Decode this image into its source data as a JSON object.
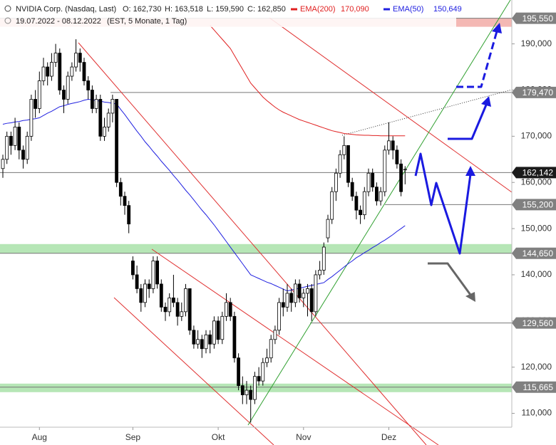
{
  "chart_data": {
    "type": "candlestick",
    "header": {
      "title": "NVIDIA Corp. (Nasdaq, Last)",
      "ohlc_labels": [
        "O: 162,730",
        "H: 163,518",
        "L: 159,590",
        "C: 162,850"
      ],
      "range": "19.07.2022 - 08.12.2022",
      "settings": "(EST, 5 Monate, 1 Tag)"
    },
    "categories": [
      null,
      null,
      null,
      null,
      null,
      null,
      null,
      null,
      null,
      "Aug",
      null,
      null,
      null,
      null,
      null,
      null,
      null,
      null,
      null,
      null,
      null,
      null,
      null,
      null,
      null,
      null,
      null,
      null,
      null,
      null,
      null,
      null,
      "Sep",
      null,
      null,
      null,
      null,
      null,
      null,
      null,
      null,
      null,
      null,
      null,
      null,
      null,
      null,
      null,
      null,
      null,
      null,
      null,
      null,
      "Okt",
      null,
      null,
      null,
      null,
      null,
      null,
      null,
      null,
      null,
      null,
      null,
      null,
      null,
      null,
      null,
      null,
      null,
      null,
      null,
      null,
      "Nov",
      null,
      null,
      null,
      null,
      null,
      null,
      null,
      null,
      null,
      null,
      null,
      null,
      null,
      null,
      null,
      null,
      null,
      null,
      null,
      null,
      "Dez",
      null,
      null,
      null,
      null
    ],
    "ohlc": [
      [
        163,
        166,
        161,
        165
      ],
      [
        165,
        171,
        164,
        170
      ],
      [
        170,
        171,
        166,
        168
      ],
      [
        168,
        174,
        167,
        172
      ],
      [
        172,
        173,
        165,
        167
      ],
      [
        167,
        168,
        163,
        165
      ],
      [
        165,
        171,
        164,
        170
      ],
      [
        170,
        179,
        169,
        178
      ],
      [
        178,
        180,
        174,
        176
      ],
      [
        176,
        184,
        175,
        182
      ],
      [
        182,
        187,
        181,
        185
      ],
      [
        185,
        186,
        181,
        183
      ],
      [
        183,
        188,
        182,
        186
      ],
      [
        186,
        190,
        185,
        188
      ],
      [
        188,
        189,
        179,
        180
      ],
      [
        180,
        181,
        175,
        178
      ],
      [
        178,
        184,
        177,
        183
      ],
      [
        183,
        186,
        182,
        185
      ],
      [
        185,
        191,
        184,
        188
      ],
      [
        188,
        189,
        184,
        186
      ],
      [
        186,
        187,
        181,
        182
      ],
      [
        182,
        183,
        178,
        180
      ],
      [
        180,
        181,
        175,
        176
      ],
      [
        176,
        179,
        175,
        178
      ],
      [
        178,
        179,
        169,
        170
      ],
      [
        170,
        174,
        169,
        172
      ],
      [
        172,
        176,
        171,
        175
      ],
      [
        175,
        179,
        173,
        178
      ],
      [
        178,
        178,
        159,
        160
      ],
      [
        160,
        161,
        155,
        157
      ],
      [
        157,
        158,
        153,
        155
      ],
      [
        155,
        156,
        149,
        151
      ],
      [
        143,
        144,
        139,
        140
      ],
      [
        140,
        142,
        136,
        137
      ],
      [
        137,
        138,
        132,
        134
      ],
      [
        134,
        139,
        133,
        138
      ],
      [
        138,
        139,
        135,
        137
      ],
      [
        137,
        144,
        136,
        143
      ],
      [
        143,
        144,
        137,
        138
      ],
      [
        138,
        139,
        132,
        133
      ],
      [
        133,
        134,
        130,
        132
      ],
      [
        132,
        136,
        131,
        135
      ],
      [
        135,
        140,
        133,
        134
      ],
      [
        134,
        135,
        129,
        131
      ],
      [
        131,
        134,
        130,
        132
      ],
      [
        132,
        138,
        131,
        137
      ],
      [
        137,
        137,
        127,
        128
      ],
      [
        128,
        129,
        124,
        125
      ],
      [
        125,
        128,
        124,
        126
      ],
      [
        126,
        127,
        122,
        124
      ],
      [
        124,
        128,
        123,
        127
      ],
      [
        127,
        128,
        123,
        125
      ],
      [
        125,
        131,
        124,
        130
      ],
      [
        130,
        131,
        125,
        126
      ],
      [
        126,
        132,
        125,
        131
      ],
      [
        131,
        136,
        130,
        134
      ],
      [
        134,
        135,
        130,
        131
      ],
      [
        131,
        132,
        121,
        122
      ],
      [
        122,
        123,
        115,
        116
      ],
      [
        116,
        118,
        112,
        114
      ],
      [
        114,
        117,
        112,
        115
      ],
      [
        115,
        116,
        108,
        113
      ],
      [
        113,
        119,
        112,
        118
      ],
      [
        118,
        120,
        116,
        117
      ],
      [
        117,
        122,
        116,
        121
      ],
      [
        121,
        124,
        120,
        122
      ],
      [
        122,
        127,
        121,
        126
      ],
      [
        126,
        129,
        125,
        128
      ],
      [
        128,
        135,
        127,
        134
      ],
      [
        134,
        137,
        131,
        133
      ],
      [
        133,
        138,
        132,
        136
      ],
      [
        136,
        137,
        132,
        134
      ],
      [
        134,
        139,
        133,
        138
      ],
      [
        138,
        139,
        134,
        135
      ],
      [
        135,
        137,
        133,
        136
      ],
      [
        136,
        138,
        131,
        137
      ],
      [
        137,
        138,
        130,
        132
      ],
      [
        132,
        141,
        131,
        140
      ],
      [
        140,
        143,
        139,
        141
      ],
      [
        141,
        147,
        140,
        146
      ],
      [
        148,
        153,
        147,
        152
      ],
      [
        152,
        159,
        151,
        158
      ],
      [
        158,
        163,
        156,
        162
      ],
      [
        162,
        167,
        161,
        166
      ],
      [
        166,
        170,
        165,
        168
      ],
      [
        168,
        168,
        159,
        160
      ],
      [
        160,
        161,
        156,
        157
      ],
      [
        157,
        158,
        152,
        154
      ],
      [
        154,
        155,
        151,
        153
      ],
      [
        153,
        159,
        152,
        158
      ],
      [
        158,
        163,
        157,
        162
      ],
      [
        162,
        163,
        158,
        159
      ],
      [
        159,
        160,
        155,
        156
      ],
      [
        156,
        159,
        155,
        158
      ],
      [
        158,
        168,
        157,
        167
      ],
      [
        167,
        173,
        166,
        169
      ],
      [
        169,
        170,
        165,
        167
      ],
      [
        167,
        168,
        163,
        164
      ],
      [
        164,
        165,
        157,
        158
      ],
      [
        162.73,
        163.518,
        159.59,
        162.85
      ]
    ],
    "series": [
      {
        "name": "EMA(200)",
        "value_label": "170,090",
        "color": "#e02020",
        "values": [
          null,
          null,
          null,
          null,
          null,
          null,
          null,
          null,
          null,
          null,
          null,
          null,
          null,
          null,
          null,
          null,
          null,
          null,
          null,
          null,
          null,
          null,
          null,
          null,
          null,
          null,
          null,
          null,
          null,
          null,
          null,
          null,
          null,
          null,
          null,
          null,
          null,
          null,
          null,
          null,
          null,
          null,
          null,
          null,
          null,
          null,
          null,
          null,
          null,
          null,
          null,
          194,
          193,
          192,
          191,
          190,
          189,
          187.5,
          186,
          184.5,
          183,
          181.5,
          180.5,
          179.5,
          178.5,
          177.7,
          177,
          176.3,
          175.7,
          175.2,
          174.8,
          174.4,
          174,
          173.6,
          173.3,
          173,
          172.7,
          172.4,
          172.1,
          171.8,
          171.5,
          171.2,
          171,
          170.8,
          170.6,
          170.5,
          170.4,
          170.3,
          170.25,
          170.2,
          170.2,
          170.15,
          170.15,
          170.1,
          170.1,
          170.1,
          170.1,
          170.1,
          170.09,
          170.09
        ]
      },
      {
        "name": "EMA(50)",
        "value_label": "150,649",
        "color": "#2020e0",
        "values": [
          172.6,
          172.8,
          172.9,
          173.1,
          173.2,
          173.4,
          173.5,
          173.7,
          173.8,
          174.0,
          174.5,
          175.0,
          175.4,
          175.9,
          176.4,
          176.6,
          176.9,
          177.1,
          177.3,
          177.5,
          177.8,
          178.0,
          177.9,
          177.7,
          177.6,
          177.4,
          177.3,
          177.1,
          177.0,
          175.8,
          174.7,
          173.5,
          172.3,
          171.1,
          170.0,
          168.8,
          167.8,
          166.7,
          165.7,
          164.6,
          163.6,
          162.6,
          161.5,
          160.5,
          159.4,
          158.3,
          157.3,
          156.2,
          155.1,
          154.0,
          153.0,
          151.9,
          150.8,
          149.6,
          148.4,
          147.2,
          146.0,
          144.8,
          143.6,
          142.4,
          141.2,
          140.0,
          139.6,
          139.2,
          138.8,
          138.4,
          138.1,
          137.7,
          137.3,
          136.9,
          136.5,
          136.7,
          136.9,
          137.1,
          137.3,
          137.5,
          137.7,
          137.9,
          138.1,
          138.3,
          139.0,
          139.6,
          140.3,
          141.0,
          141.7,
          142.4,
          143.0,
          143.7,
          144.2,
          144.8,
          145.3,
          145.9,
          146.4,
          147.0,
          147.5,
          148.1,
          148.7,
          149.4,
          150.0,
          150.649
        ]
      }
    ],
    "ylim": [
      107,
      199.5
    ],
    "yticks": [
      {
        "value": 110,
        "label": "110,000"
      },
      {
        "value": 120,
        "label": "120,000"
      },
      {
        "value": 130,
        "label": "130,000"
      },
      {
        "value": 140,
        "label": "140,000"
      },
      {
        "value": 150,
        "label": "150,000"
      },
      {
        "value": 160,
        "label": "160,000"
      },
      {
        "value": 170,
        "label": "170,000"
      },
      {
        "value": 180,
        "label": "180,000"
      },
      {
        "value": 190,
        "label": "190,000"
      }
    ],
    "levels": [
      {
        "value": 195.55,
        "label": "195,550"
      },
      {
        "value": 179.47,
        "label": "179,470"
      },
      {
        "value": 162.142,
        "label": "162,142"
      },
      {
        "value": 155.2,
        "label": "155,200"
      },
      {
        "value": 144.65,
        "label": "144,650"
      },
      {
        "value": 129.56,
        "label": "129,560"
      },
      {
        "value": 115.665,
        "label": "115,665"
      }
    ],
    "up_color": "#ffffff",
    "down_color": "#000000"
  }
}
